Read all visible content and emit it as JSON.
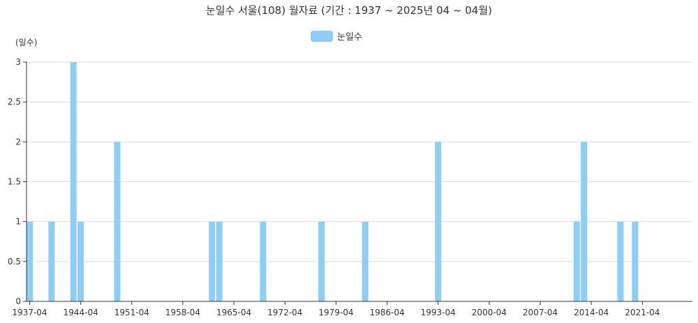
{
  "chart_data": {
    "type": "bar",
    "title": "눈일수 서울(108) 월자료 (기간 : 1937 ~ 2025년  04 ~ 04월)",
    "ylabel": "(일수)",
    "xlabel": "",
    "legend": {
      "position": "top-center",
      "label": "눈일수"
    },
    "color": "#8ccef5",
    "ylim": [
      0,
      3
    ],
    "yticks": [
      "0",
      "0.5",
      "1",
      "1.5",
      "2",
      "2.5",
      "3"
    ],
    "ytick_values": [
      0,
      0.5,
      1,
      1.5,
      2,
      2.5,
      3
    ],
    "xticks": [
      "1937-04",
      "1944-04",
      "1951-04",
      "1958-04",
      "1965-04",
      "1972-04",
      "1979-04",
      "1986-04",
      "1993-04",
      "2000-04",
      "2007-04",
      "2014-04",
      "2021-04"
    ],
    "xtick_years": [
      1937,
      1944,
      1951,
      1958,
      1965,
      1972,
      1979,
      1986,
      1993,
      2000,
      2007,
      2014,
      2021
    ],
    "xrange_years": [
      1937,
      2025
    ],
    "grid": true,
    "series": [
      {
        "name": "눈일수",
        "x": [
          "1937-04",
          "1940-04",
          "1943-04",
          "1944-04",
          "1949-04",
          "1962-04",
          "1963-04",
          "1969-04",
          "1977-04",
          "1983-04",
          "1993-04",
          "2012-04",
          "2013-04",
          "2018-04",
          "2020-04"
        ],
        "years": [
          1937,
          1940,
          1943,
          1944,
          1949,
          1962,
          1963,
          1969,
          1977,
          1983,
          1993,
          2012,
          2013,
          2018,
          2020
        ],
        "values": [
          1,
          1,
          3,
          1,
          2,
          1,
          1,
          1,
          1,
          1,
          2,
          1,
          2,
          1,
          1
        ]
      }
    ]
  }
}
